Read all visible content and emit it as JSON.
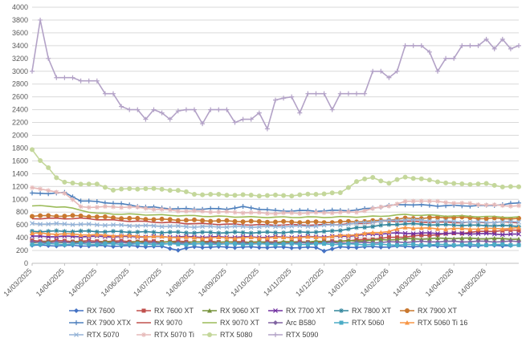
{
  "chart_data": {
    "type": "line",
    "title": "",
    "xlabel": "",
    "ylabel": "",
    "ylim": [
      0,
      4000
    ],
    "yticks": [
      0,
      200,
      400,
      600,
      800,
      1000,
      1200,
      1400,
      1600,
      1800,
      2000,
      2200,
      2400,
      2600,
      2800,
      3000,
      3200,
      3400,
      3600,
      3800,
      4000
    ],
    "x_ticks": [
      "14/03/2025",
      "14/04/2025",
      "14/05/2025",
      "14/06/2025",
      "14/07/2025",
      "14/08/2025",
      "14/09/2025",
      "14/10/2025",
      "14/11/2025",
      "14/12/2025",
      "14/01/2026",
      "14/02/2026",
      "14/03/2026",
      "14/04/2026",
      "14/05/2026"
    ],
    "x_points": 61,
    "grid": "horizontal",
    "legend_position": "bottom",
    "series": [
      {
        "name": "RX 7600",
        "color": "#4472c4",
        "marker": "diamond",
        "anchors": [
          [
            0,
            280
          ],
          [
            6,
            275
          ],
          [
            12,
            270
          ],
          [
            16,
            260
          ],
          [
            18,
            210
          ],
          [
            20,
            255
          ],
          [
            30,
            250
          ],
          [
            35,
            245
          ],
          [
            36,
            200
          ],
          [
            38,
            250
          ],
          [
            44,
            260
          ],
          [
            50,
            270
          ],
          [
            60,
            280
          ]
        ]
      },
      {
        "name": "RX 7600 XT",
        "color": "#c0504d",
        "marker": "square",
        "anchors": [
          [
            0,
            350
          ],
          [
            8,
            345
          ],
          [
            16,
            340
          ],
          [
            24,
            335
          ],
          [
            30,
            330
          ],
          [
            36,
            335
          ],
          [
            40,
            360
          ],
          [
            44,
            400
          ],
          [
            50,
            450
          ],
          [
            56,
            500
          ],
          [
            60,
            520
          ]
        ]
      },
      {
        "name": "RX 9060 XT",
        "color": "#77933c",
        "marker": "triangle",
        "anchors": [
          [
            0,
            330
          ],
          [
            10,
            330
          ],
          [
            20,
            330
          ],
          [
            30,
            330
          ],
          [
            36,
            340
          ],
          [
            40,
            350
          ],
          [
            46,
            380
          ],
          [
            52,
            390
          ],
          [
            60,
            380
          ]
        ]
      },
      {
        "name": "RX 7700 XT",
        "color": "#7030a0",
        "marker": "x",
        "anchors": [
          [
            0,
            420
          ],
          [
            8,
            420
          ],
          [
            16,
            415
          ],
          [
            24,
            410
          ],
          [
            32,
            410
          ],
          [
            38,
            420
          ],
          [
            44,
            470
          ],
          [
            50,
            470
          ],
          [
            56,
            460
          ],
          [
            60,
            450
          ]
        ]
      },
      {
        "name": "RX 7800 XT",
        "color": "#31859c",
        "marker": "star",
        "anchors": [
          [
            0,
            500
          ],
          [
            6,
            500
          ],
          [
            12,
            490
          ],
          [
            20,
            480
          ],
          [
            28,
            480
          ],
          [
            36,
            490
          ],
          [
            42,
            580
          ],
          [
            46,
            620
          ],
          [
            50,
            600
          ],
          [
            56,
            590
          ],
          [
            60,
            580
          ]
        ]
      },
      {
        "name": "RX 7900 XT",
        "color": "#c9782f",
        "marker": "circle",
        "anchors": [
          [
            0,
            740
          ],
          [
            6,
            740
          ],
          [
            12,
            700
          ],
          [
            20,
            670
          ],
          [
            28,
            650
          ],
          [
            36,
            640
          ],
          [
            42,
            660
          ],
          [
            46,
            700
          ],
          [
            52,
            720
          ],
          [
            56,
            700
          ],
          [
            60,
            700
          ]
        ]
      },
      {
        "name": "RX 7900 XTX",
        "color": "#4f81bd",
        "marker": "plus",
        "anchors": [
          [
            0,
            1090
          ],
          [
            4,
            1100
          ],
          [
            6,
            980
          ],
          [
            10,
            940
          ],
          [
            14,
            880
          ],
          [
            18,
            850
          ],
          [
            24,
            850
          ],
          [
            26,
            880
          ],
          [
            30,
            820
          ],
          [
            36,
            820
          ],
          [
            40,
            830
          ],
          [
            44,
            900
          ],
          [
            46,
            920
          ],
          [
            50,
            900
          ],
          [
            56,
            900
          ],
          [
            58,
            920
          ],
          [
            60,
            940
          ]
        ]
      },
      {
        "name": "RX 9070",
        "color": "#c0504d",
        "marker": "none",
        "anchors": [
          [
            0,
            700
          ],
          [
            6,
            700
          ],
          [
            12,
            660
          ],
          [
            20,
            620
          ],
          [
            28,
            600
          ],
          [
            36,
            600
          ],
          [
            40,
            620
          ],
          [
            44,
            660
          ],
          [
            50,
            640
          ],
          [
            56,
            640
          ],
          [
            60,
            640
          ]
        ]
      },
      {
        "name": "RX 9070 XT",
        "color": "#9bbb59",
        "marker": "none",
        "anchors": [
          [
            0,
            900
          ],
          [
            4,
            880
          ],
          [
            8,
            780
          ],
          [
            14,
            760
          ],
          [
            20,
            740
          ],
          [
            28,
            720
          ],
          [
            36,
            720
          ],
          [
            42,
            730
          ],
          [
            46,
            760
          ],
          [
            52,
            740
          ],
          [
            56,
            730
          ],
          [
            60,
            720
          ]
        ]
      },
      {
        "name": "Arc B580",
        "color": "#8064a2",
        "marker": "diamond",
        "anchors": [
          [
            0,
            330
          ],
          [
            10,
            320
          ],
          [
            20,
            310
          ],
          [
            30,
            310
          ],
          [
            36,
            320
          ],
          [
            40,
            320
          ],
          [
            44,
            330
          ],
          [
            50,
            340
          ],
          [
            56,
            340
          ],
          [
            60,
            340
          ]
        ]
      },
      {
        "name": "RTX 5060",
        "color": "#4bacc6",
        "marker": "square",
        "anchors": [
          [
            0,
            300
          ],
          [
            10,
            300
          ],
          [
            20,
            300
          ],
          [
            30,
            300
          ],
          [
            38,
            300
          ],
          [
            44,
            290
          ],
          [
            50,
            290
          ],
          [
            56,
            290
          ],
          [
            60,
            290
          ]
        ]
      },
      {
        "name": "RTX 5060 Ti 16",
        "color": "#f79646",
        "marker": "triangle",
        "anchors": [
          [
            0,
            470
          ],
          [
            6,
            450
          ],
          [
            14,
            420
          ],
          [
            20,
            400
          ],
          [
            28,
            400
          ],
          [
            36,
            410
          ],
          [
            40,
            450
          ],
          [
            44,
            500
          ],
          [
            46,
            560
          ],
          [
            50,
            540
          ],
          [
            56,
            540
          ],
          [
            60,
            550
          ]
        ]
      },
      {
        "name": "RTX 5070",
        "color": "#95b3d7",
        "marker": "x",
        "anchors": [
          [
            0,
            620
          ],
          [
            6,
            610
          ],
          [
            12,
            590
          ],
          [
            20,
            570
          ],
          [
            28,
            570
          ],
          [
            34,
            580
          ],
          [
            38,
            600
          ],
          [
            42,
            650
          ],
          [
            46,
            680
          ],
          [
            50,
            660
          ],
          [
            56,
            640
          ],
          [
            60,
            650
          ]
        ]
      },
      {
        "name": "RTX 5070 Ti",
        "color": "#e6b9b8",
        "marker": "star",
        "anchors": [
          [
            0,
            1190
          ],
          [
            2,
            1130
          ],
          [
            4,
            1100
          ],
          [
            6,
            880
          ],
          [
            12,
            880
          ],
          [
            18,
            820
          ],
          [
            24,
            800
          ],
          [
            30,
            780
          ],
          [
            36,
            790
          ],
          [
            40,
            800
          ],
          [
            42,
            850
          ],
          [
            44,
            900
          ],
          [
            46,
            960
          ],
          [
            48,
            980
          ],
          [
            50,
            960
          ],
          [
            54,
            930
          ],
          [
            58,
            900
          ],
          [
            60,
            900
          ]
        ]
      },
      {
        "name": "RTX 5080",
        "color": "#c4d79b",
        "marker": "circle",
        "anchors": [
          [
            0,
            1770
          ],
          [
            1,
            1600
          ],
          [
            2,
            1500
          ],
          [
            3,
            1340
          ],
          [
            4,
            1260
          ],
          [
            8,
            1230
          ],
          [
            10,
            1150
          ],
          [
            14,
            1170
          ],
          [
            18,
            1140
          ],
          [
            20,
            1080
          ],
          [
            24,
            1070
          ],
          [
            28,
            1060
          ],
          [
            32,
            1060
          ],
          [
            36,
            1090
          ],
          [
            38,
            1100
          ],
          [
            40,
            1280
          ],
          [
            42,
            1340
          ],
          [
            44,
            1250
          ],
          [
            46,
            1350
          ],
          [
            50,
            1280
          ],
          [
            52,
            1240
          ],
          [
            56,
            1240
          ],
          [
            58,
            1200
          ],
          [
            60,
            1190
          ]
        ]
      },
      {
        "name": "RTX 5090",
        "color": "#b3a2c7",
        "marker": "plus",
        "values": [
          3000,
          3800,
          3200,
          2900,
          2900,
          2900,
          2850,
          2850,
          2850,
          2650,
          2650,
          2450,
          2400,
          2400,
          2250,
          2400,
          2350,
          2250,
          2380,
          2400,
          2400,
          2180,
          2400,
          2400,
          2400,
          2200,
          2250,
          2250,
          2350,
          2100,
          2550,
          2580,
          2600,
          2350,
          2650,
          2650,
          2650,
          2400,
          2650,
          2650,
          2650,
          2650,
          3000,
          3000,
          2900,
          3000,
          3400,
          3400,
          3400,
          3300,
          3000,
          3200,
          3200,
          3400,
          3400,
          3400,
          3500,
          3350,
          3500,
          3350,
          3400
        ]
      }
    ]
  }
}
